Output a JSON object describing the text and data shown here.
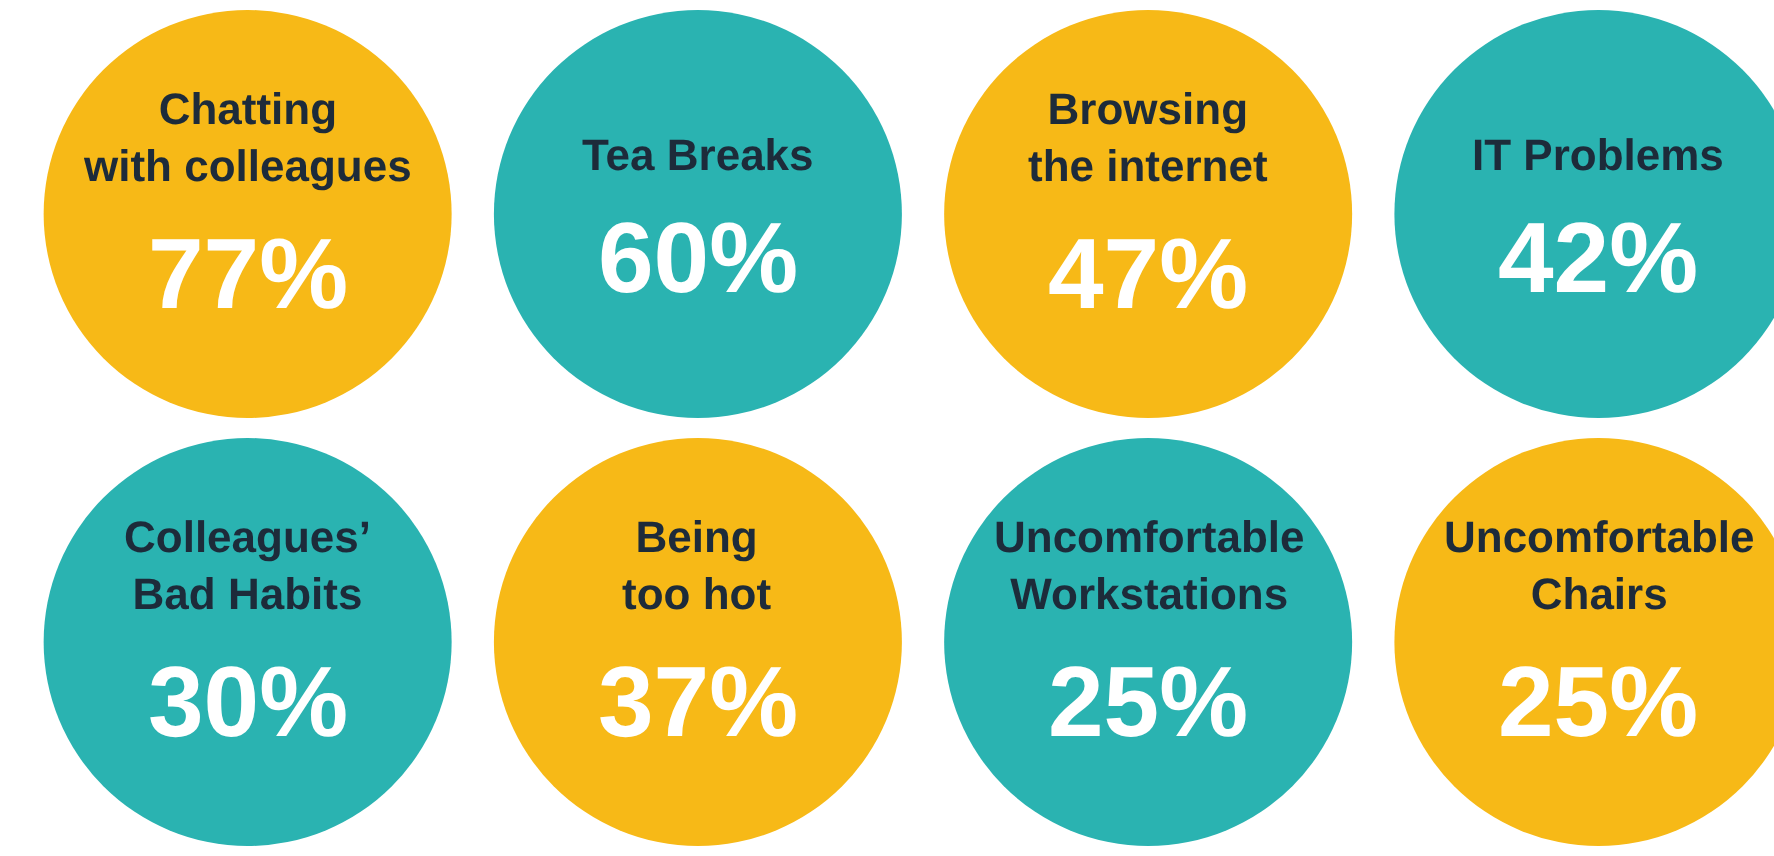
{
  "chart_data": {
    "type": "other",
    "categories": [
      "Chatting\nwith colleagues",
      "Tea Breaks",
      "Browsing\nthe internet",
      "IT Problems",
      "Colleagues’\nBad Habits",
      "Being\ntoo hot",
      "Uncomfortable\nWorkstations",
      "Uncomfortable\nChairs"
    ],
    "values": [
      77,
      60,
      47,
      42,
      30,
      37,
      25,
      25
    ],
    "value_labels": [
      "77%",
      "60%",
      "47%",
      "42%",
      "30%",
      "37%",
      "25%",
      "25%"
    ],
    "colors": [
      "#f7b917",
      "#2ab3b1",
      "#f7b917",
      "#2ab3b1",
      "#2ab3b1",
      "#f7b917",
      "#2ab3b1",
      "#f7b917"
    ]
  }
}
